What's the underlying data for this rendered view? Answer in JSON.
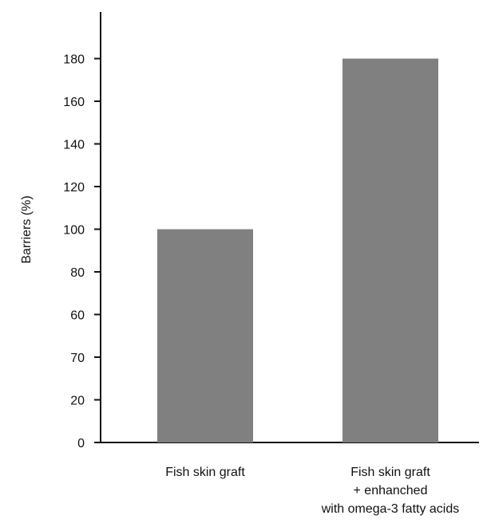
{
  "chart_data": {
    "type": "bar",
    "categories": [
      [
        "Fish skin graft"
      ],
      [
        "Fish skin graft",
        "+ enhanched",
        "with omega-3 fatty acids"
      ]
    ],
    "values": [
      100,
      180
    ],
    "ylabel": "Barriers (%)",
    "xlabel": "",
    "ticks": [
      "0",
      "20",
      "70",
      "60",
      "80",
      "100",
      "120",
      "140",
      "160",
      "180"
    ],
    "ylim": [
      0,
      180
    ],
    "grid": false,
    "colors": {
      "bar": "#808080",
      "axis": "#111111"
    }
  }
}
